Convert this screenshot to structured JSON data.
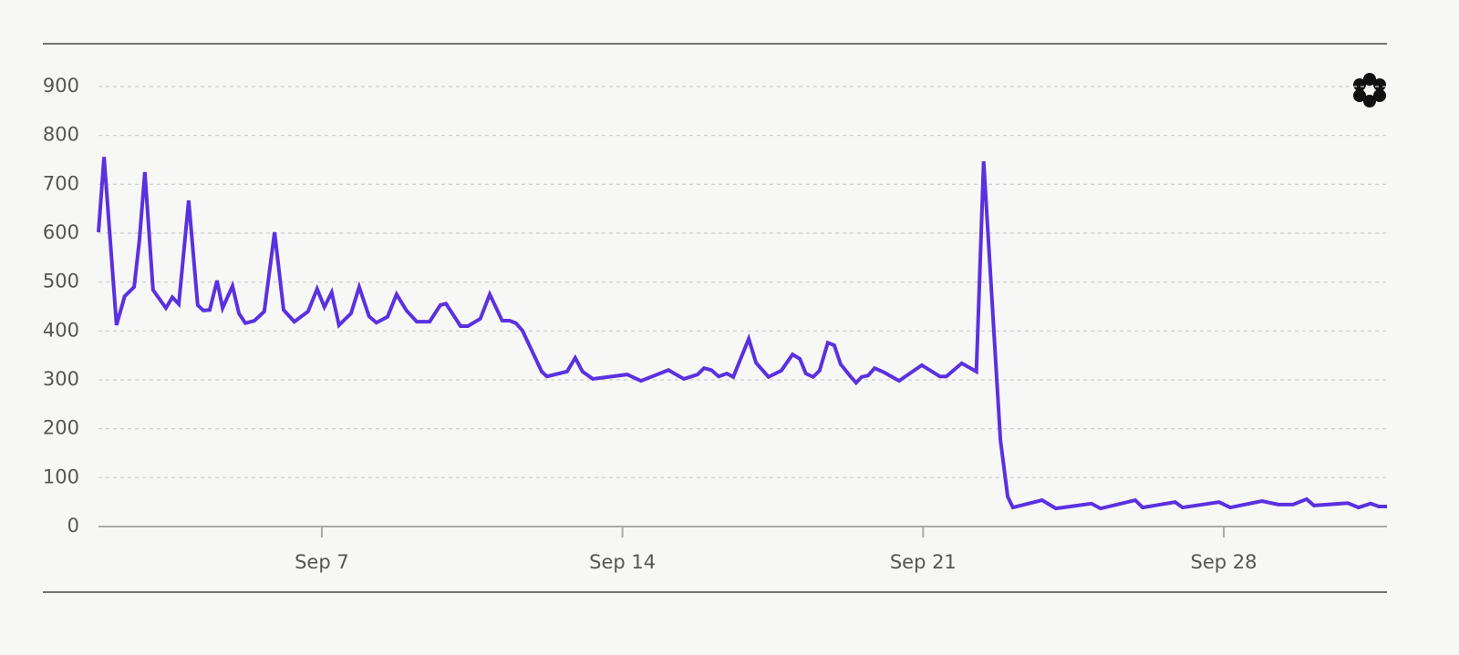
{
  "chart_data": {
    "type": "line",
    "x": [
      1.8,
      1.93,
      2.22,
      2.41,
      2.63,
      2.75,
      2.88,
      3.07,
      3.37,
      3.52,
      3.67,
      3.9,
      4.11,
      4.24,
      4.39,
      4.56,
      4.69,
      4.92,
      5.07,
      5.22,
      5.43,
      5.66,
      5.9,
      6.11,
      6.36,
      6.68,
      6.89,
      7.06,
      7.23,
      7.4,
      7.68,
      7.87,
      8.1,
      8.27,
      8.53,
      8.74,
      8.97,
      9.21,
      9.51,
      9.76,
      9.89,
      10.23,
      10.4,
      10.69,
      10.91,
      11.2,
      11.37,
      11.52,
      11.67,
      12.12,
      12.24,
      12.71,
      12.9,
      13.07,
      13.31,
      14.11,
      14.43,
      15.07,
      15.43,
      15.75,
      15.9,
      16.07,
      16.24,
      16.43,
      16.58,
      16.94,
      17.11,
      17.4,
      17.7,
      17.96,
      18.13,
      18.27,
      18.44,
      18.59,
      18.78,
      18.93,
      19.08,
      19.31,
      19.44,
      19.57,
      19.72,
      19.87,
      20.1,
      20.44,
      20.97,
      21.39,
      21.54,
      21.9,
      22.24,
      22.41,
      22.8,
      22.97,
      23.09,
      23.77,
      24.09,
      24.92,
      25.13,
      25.94,
      26.11,
      26.87,
      27.04,
      27.89,
      28.15,
      28.89,
      29.27,
      29.61,
      29.93,
      30.1,
      30.89,
      31.14,
      31.42,
      31.61,
      31.8
    ],
    "series": [
      {
        "color": "#5a31e0",
        "values": [
          602,
          756,
          412,
          471,
          490,
          583,
          725,
          484,
          447,
          469,
          455,
          667,
          453,
          442,
          443,
          503,
          447,
          492,
          436,
          416,
          421,
          440,
          602,
          443,
          419,
          440,
          486,
          449,
          479,
          412,
          436,
          490,
          430,
          417,
          429,
          475,
          442,
          419,
          419,
          453,
          456,
          410,
          410,
          425,
          475,
          421,
          421,
          416,
          401,
          317,
          307,
          317,
          345,
          317,
          302,
          311,
          298,
          320,
          302,
          311,
          324,
          320,
          307,
          313,
          306,
          384,
          335,
          306,
          319,
          352,
          343,
          313,
          306,
          319,
          376,
          371,
          332,
          307,
          294,
          306,
          309,
          324,
          315,
          298,
          330,
          307,
          307,
          334,
          317,
          747,
          177,
          61,
          39,
          54,
          37,
          47,
          37,
          54,
          39,
          50,
          39,
          50,
          39,
          52,
          45,
          45,
          56,
          43,
          48,
          39,
          47,
          41,
          41
        ]
      }
    ],
    "xlim": [
      1.8,
      31.8
    ],
    "xticks": [
      {
        "value": 7,
        "label": "Sep 7"
      },
      {
        "value": 14,
        "label": "Sep 14"
      },
      {
        "value": 21,
        "label": "Sep 21"
      },
      {
        "value": 28,
        "label": "Sep 28"
      }
    ],
    "ylim": [
      0,
      900
    ],
    "yticks": [
      0,
      100,
      200,
      300,
      400,
      500,
      600,
      700,
      800,
      900
    ],
    "grid": true
  }
}
